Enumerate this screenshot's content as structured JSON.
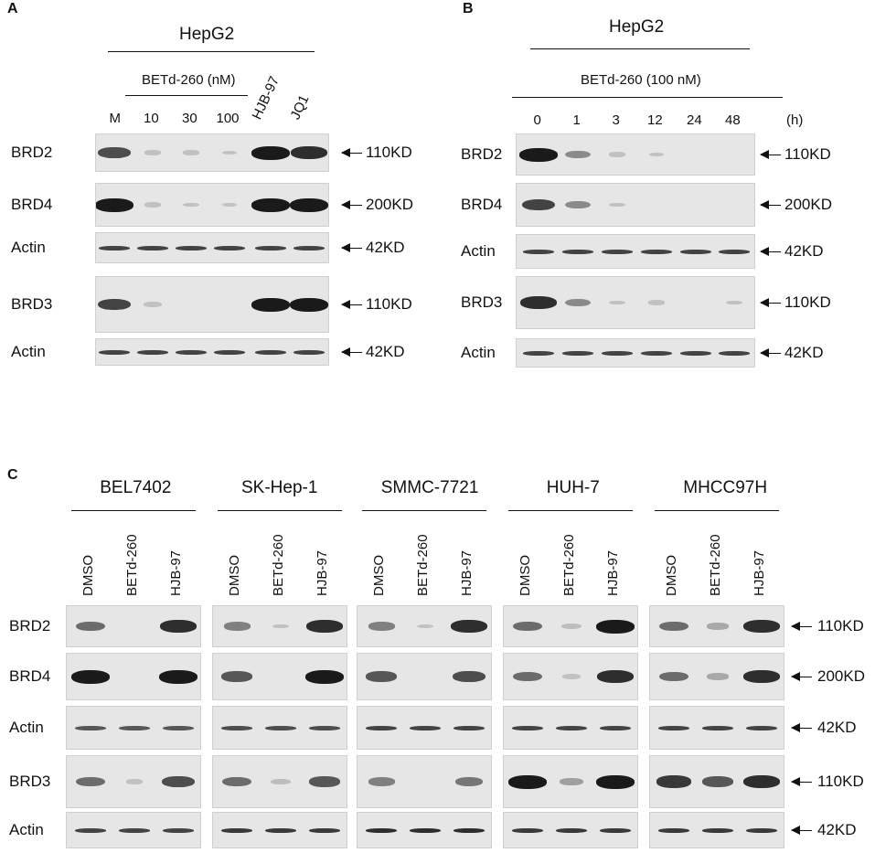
{
  "panelA": {
    "letter": "A",
    "cell_line": "HepG2",
    "treatment": "BETd-260 (nM)",
    "lanes": [
      "M",
      "10",
      "30",
      "100",
      "HJB-97",
      "JQ1"
    ],
    "proteins": [
      "BRD2",
      "BRD4",
      "Actin",
      "BRD3",
      "Actin"
    ],
    "sizes": [
      "110KD",
      "200KD",
      "42KD",
      "110KD",
      "42KD"
    ],
    "band_intensity": [
      [
        0.75,
        0.1,
        0.1,
        0.03,
        1.0,
        0.9
      ],
      [
        1.0,
        0.1,
        0.05,
        0.02,
        1.0,
        1.0
      ],
      [
        0.8,
        0.8,
        0.8,
        0.8,
        0.8,
        0.8
      ],
      [
        0.8,
        0.15,
        0.0,
        0.0,
        1.0,
        1.0
      ],
      [
        0.8,
        0.8,
        0.8,
        0.8,
        0.8,
        0.8
      ]
    ]
  },
  "panelB": {
    "letter": "B",
    "cell_line": "HepG2",
    "treatment": "BETd-260 (100 nM)",
    "lanes": [
      "0",
      "1",
      "3",
      "12",
      "24",
      "48"
    ],
    "unit": "(h)",
    "proteins": [
      "BRD2",
      "BRD4",
      "Actin",
      "BRD3",
      "Actin"
    ],
    "sizes": [
      "110KD",
      "200KD",
      "42KD",
      "110KD",
      "42KD"
    ],
    "band_intensity": [
      [
        1.0,
        0.45,
        0.1,
        0.02,
        0.0,
        0.0
      ],
      [
        0.8,
        0.45,
        0.05,
        0.0,
        0.0,
        0.0
      ],
      [
        0.8,
        0.8,
        0.8,
        0.8,
        0.8,
        0.8
      ],
      [
        0.9,
        0.45,
        0.05,
        0.1,
        0.0,
        0.05
      ],
      [
        0.8,
        0.8,
        0.8,
        0.8,
        0.8,
        0.8
      ]
    ]
  },
  "panelC": {
    "letter": "C",
    "lanes": [
      "DMSO",
      "BETd-260",
      "HJB-97"
    ],
    "proteins": [
      "BRD2",
      "BRD4",
      "Actin",
      "BRD3",
      "Actin"
    ],
    "sizes": [
      "110KD",
      "200KD",
      "42KD",
      "110KD",
      "42KD"
    ],
    "cell_lines": [
      {
        "name": "BEL7402",
        "band_intensity": [
          [
            0.6,
            0.0,
            0.9
          ],
          [
            1.0,
            0.0,
            1.0
          ],
          [
            0.7,
            0.7,
            0.7
          ],
          [
            0.6,
            0.1,
            0.75
          ],
          [
            0.8,
            0.8,
            0.8
          ]
        ]
      },
      {
        "name": "SK-Hep-1",
        "band_intensity": [
          [
            0.5,
            0.05,
            0.9
          ],
          [
            0.7,
            0.0,
            1.0
          ],
          [
            0.75,
            0.75,
            0.75
          ],
          [
            0.6,
            0.2,
            0.7
          ],
          [
            0.85,
            0.85,
            0.85
          ]
        ]
      },
      {
        "name": "SMMC-7721",
        "band_intensity": [
          [
            0.5,
            0.05,
            0.9
          ],
          [
            0.7,
            0.0,
            0.75
          ],
          [
            0.8,
            0.8,
            0.8
          ],
          [
            0.5,
            0.0,
            0.55
          ],
          [
            0.9,
            0.9,
            0.9
          ]
        ]
      },
      {
        "name": "HUH-7",
        "band_intensity": [
          [
            0.6,
            0.2,
            1.0
          ],
          [
            0.6,
            0.15,
            0.9
          ],
          [
            0.8,
            0.8,
            0.8
          ],
          [
            1.0,
            0.35,
            1.0
          ],
          [
            0.85,
            0.85,
            0.85
          ]
        ]
      },
      {
        "name": "MHCC97H",
        "band_intensity": [
          [
            0.6,
            0.3,
            0.9
          ],
          [
            0.6,
            0.3,
            0.9
          ],
          [
            0.8,
            0.8,
            0.8
          ],
          [
            0.85,
            0.7,
            0.9
          ],
          [
            0.85,
            0.85,
            0.85
          ]
        ]
      }
    ]
  }
}
